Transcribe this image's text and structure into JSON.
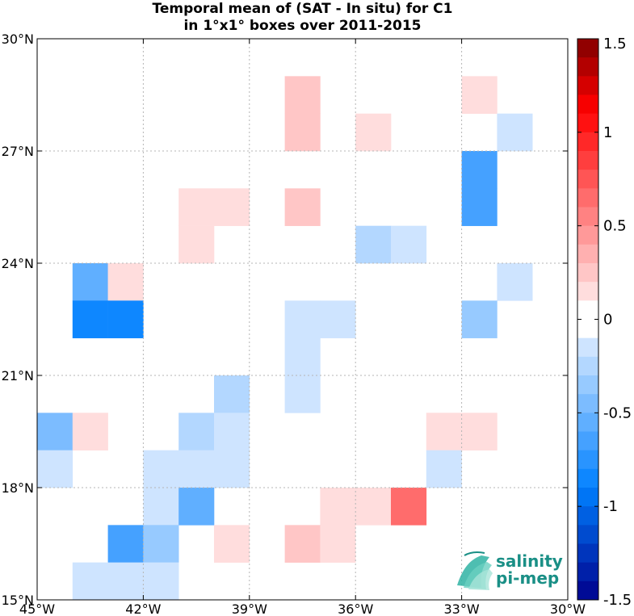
{
  "title_line1": "Temporal mean of (SAT - In situ) for C1",
  "title_line2": "in 1°x1° boxes over 2011-2015",
  "logo": {
    "line1": "salinity",
    "line2": "pi-mep"
  },
  "chart_data": {
    "type": "heatmap",
    "title": "Temporal mean of (SAT - In situ) for C1 in 1°x1° boxes over 2011-2015",
    "x_range": [
      -45,
      -30
    ],
    "y_range": [
      15,
      30
    ],
    "x_ticks": [
      {
        "value": -45,
        "label": "45°W"
      },
      {
        "value": -42,
        "label": "42°W"
      },
      {
        "value": -39,
        "label": "39°W"
      },
      {
        "value": -36,
        "label": "36°W"
      },
      {
        "value": -33,
        "label": "33°W"
      },
      {
        "value": -30,
        "label": "30°W"
      }
    ],
    "y_ticks": [
      {
        "value": 30,
        "label": "30°N"
      },
      {
        "value": 27,
        "label": "27°N"
      },
      {
        "value": 24,
        "label": "24°N"
      },
      {
        "value": 21,
        "label": "21°N"
      },
      {
        "value": 18,
        "label": "18°N"
      },
      {
        "value": 15,
        "label": "15°N"
      }
    ],
    "grid": true,
    "colorbar": {
      "min": -1.5,
      "max": 1.5,
      "step": 0.1,
      "ticks": [
        {
          "value": 1.5,
          "label": "1.5"
        },
        {
          "value": 1,
          "label": "1"
        },
        {
          "value": 0.5,
          "label": "0.5"
        },
        {
          "value": 0,
          "label": "0"
        },
        {
          "value": -0.5,
          "label": "-0.5"
        },
        {
          "value": -1,
          "label": "-1"
        },
        {
          "value": -1.5,
          "label": "-1.5"
        }
      ]
    },
    "cells": [
      {
        "lon": -38,
        "lat": 28,
        "value": 0.25
      },
      {
        "lon": -38,
        "lat": 27,
        "value": 0.25
      },
      {
        "lon": -33,
        "lat": 28,
        "value": 0.15
      },
      {
        "lon": -36,
        "lat": 27,
        "value": 0.15
      },
      {
        "lon": -32,
        "lat": 27,
        "value": -0.15
      },
      {
        "lon": -33,
        "lat": 26,
        "value": -0.65
      },
      {
        "lon": -33,
        "lat": 25,
        "value": -0.65
      },
      {
        "lon": -41,
        "lat": 25,
        "value": 0.15
      },
      {
        "lon": -40,
        "lat": 25,
        "value": 0.15
      },
      {
        "lon": -38,
        "lat": 25,
        "value": 0.25
      },
      {
        "lon": -41,
        "lat": 24,
        "value": 0.15
      },
      {
        "lon": -36,
        "lat": 24,
        "value": -0.25
      },
      {
        "lon": -35,
        "lat": 24,
        "value": -0.15
      },
      {
        "lon": -44,
        "lat": 23,
        "value": -0.55
      },
      {
        "lon": -43,
        "lat": 23,
        "value": 0.15
      },
      {
        "lon": -32,
        "lat": 23,
        "value": -0.15
      },
      {
        "lon": -44,
        "lat": 22,
        "value": -0.85
      },
      {
        "lon": -43,
        "lat": 22,
        "value": -0.85
      },
      {
        "lon": -38,
        "lat": 22,
        "value": -0.15
      },
      {
        "lon": -37,
        "lat": 22,
        "value": -0.15
      },
      {
        "lon": -33,
        "lat": 22,
        "value": -0.35
      },
      {
        "lon": -38,
        "lat": 21,
        "value": -0.15
      },
      {
        "lon": -38,
        "lat": 20,
        "value": -0.15
      },
      {
        "lon": -40,
        "lat": 20,
        "value": -0.25
      },
      {
        "lon": -45,
        "lat": 19,
        "value": -0.45
      },
      {
        "lon": -44,
        "lat": 19,
        "value": 0.15
      },
      {
        "lon": -41,
        "lat": 19,
        "value": -0.25
      },
      {
        "lon": -40,
        "lat": 19,
        "value": -0.15
      },
      {
        "lon": -34,
        "lat": 19,
        "value": 0.15
      },
      {
        "lon": -33,
        "lat": 19,
        "value": 0.15
      },
      {
        "lon": -45,
        "lat": 18,
        "value": -0.15
      },
      {
        "lon": -42,
        "lat": 18,
        "value": -0.15
      },
      {
        "lon": -41,
        "lat": 18,
        "value": -0.15
      },
      {
        "lon": -40,
        "lat": 18,
        "value": -0.15
      },
      {
        "lon": -34,
        "lat": 18,
        "value": -0.15
      },
      {
        "lon": -42,
        "lat": 17,
        "value": -0.15
      },
      {
        "lon": -41,
        "lat": 17,
        "value": -0.55
      },
      {
        "lon": -37,
        "lat": 17,
        "value": 0.15
      },
      {
        "lon": -36,
        "lat": 17,
        "value": 0.15
      },
      {
        "lon": -35,
        "lat": 17,
        "value": 0.65
      },
      {
        "lon": -43,
        "lat": 16,
        "value": -0.65
      },
      {
        "lon": -42,
        "lat": 16,
        "value": -0.35
      },
      {
        "lon": -40,
        "lat": 16,
        "value": 0.15
      },
      {
        "lon": -38,
        "lat": 16,
        "value": 0.25
      },
      {
        "lon": -37,
        "lat": 16,
        "value": 0.15
      },
      {
        "lon": -44,
        "lat": 15,
        "value": -0.15
      },
      {
        "lon": -43,
        "lat": 15,
        "value": -0.15
      },
      {
        "lon": -42,
        "lat": 15,
        "value": -0.15
      }
    ]
  }
}
